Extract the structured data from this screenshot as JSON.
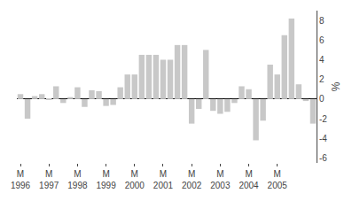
{
  "chart_data": {
    "type": "bar",
    "ylabel": "%",
    "categories": [
      "M\n1996",
      null,
      null,
      null,
      "M\n1997",
      null,
      null,
      null,
      "M\n1998",
      null,
      null,
      null,
      "M\n1999",
      null,
      null,
      null,
      "M\n2000",
      null,
      null,
      null,
      "M\n2001",
      null,
      null,
      null,
      "M\n2002",
      null,
      null,
      null,
      "M\n2003",
      null,
      null,
      null,
      "M\n2004",
      null,
      null,
      null,
      "M\n2005",
      null,
      null,
      null,
      null,
      null
    ],
    "values": [
      0.5,
      -2.0,
      0.3,
      0.5,
      -0.1,
      1.3,
      -0.4,
      0.2,
      1.2,
      -0.8,
      0.9,
      0.8,
      -0.7,
      -0.6,
      1.2,
      2.5,
      2.5,
      4.5,
      4.5,
      4.5,
      4.0,
      4.0,
      5.5,
      5.5,
      -2.5,
      -1.0,
      5.0,
      -1.2,
      -1.5,
      -1.3,
      -0.4,
      1.3,
      1.0,
      -4.2,
      -2.2,
      3.5,
      2.5,
      6.5,
      8.2,
      1.5,
      -0.2,
      -2.5
    ],
    "color": "#c8c8c8",
    "ylim": [
      -6.5,
      9.0
    ],
    "yticks": [
      -6,
      -4,
      -2,
      0,
      2,
      4,
      6,
      8
    ],
    "grid": false
  }
}
